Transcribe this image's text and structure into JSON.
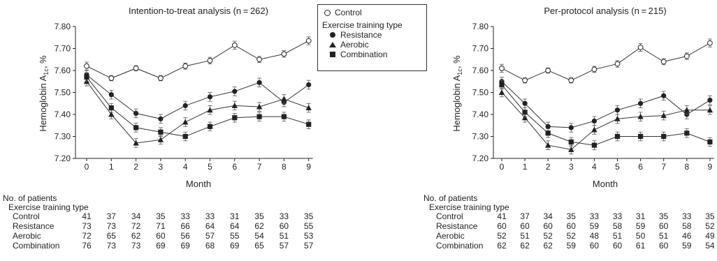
{
  "legend": {
    "items": [
      {
        "label": "Control",
        "marker": "open-circle"
      },
      {
        "label": "Resistance",
        "marker": "filled-circle"
      },
      {
        "label": "Aerobic",
        "marker": "filled-triangle"
      },
      {
        "label": "Combination",
        "marker": "filled-square"
      }
    ],
    "group_title": "Exercise training type"
  },
  "chart_data": [
    {
      "type": "line",
      "title": "Intention-to-treat analysis (n = 262)",
      "xlabel": "Month",
      "ylabel": "Hemoglobin A1c, %",
      "x": [
        0,
        1,
        2,
        3,
        4,
        5,
        6,
        7,
        8,
        9
      ],
      "ylim": [
        7.2,
        7.8
      ],
      "yticks": [
        "7.20",
        "7.30",
        "7.40",
        "7.50",
        "7.60",
        "7.70",
        "7.80"
      ],
      "series": [
        {
          "name": "Control",
          "marker": "open-circle",
          "values": [
            7.62,
            7.565,
            7.61,
            7.565,
            7.62,
            7.645,
            7.715,
            7.65,
            7.675,
            7.735
          ],
          "err": [
            0.018,
            0.012,
            0.012,
            0.012,
            0.014,
            0.015,
            0.018,
            0.014,
            0.015,
            0.018
          ]
        },
        {
          "name": "Resistance",
          "marker": "filled-circle",
          "values": [
            7.58,
            7.49,
            7.405,
            7.38,
            7.44,
            7.48,
            7.505,
            7.545,
            7.455,
            7.535
          ],
          "err": [
            0.02,
            0.02,
            0.02,
            0.02,
            0.02,
            0.02,
            0.02,
            0.02,
            0.02,
            0.02
          ]
        },
        {
          "name": "Aerobic",
          "marker": "filled-triangle",
          "values": [
            7.55,
            7.4,
            7.27,
            7.285,
            7.365,
            7.42,
            7.44,
            7.435,
            7.47,
            7.43
          ],
          "err": [
            0.02,
            0.02,
            0.02,
            0.02,
            0.02,
            0.02,
            0.02,
            0.02,
            0.02,
            0.02
          ]
        },
        {
          "name": "Combination",
          "marker": "filled-square",
          "values": [
            7.57,
            7.43,
            7.34,
            7.32,
            7.3,
            7.345,
            7.385,
            7.39,
            7.39,
            7.355
          ],
          "err": [
            0.02,
            0.02,
            0.02,
            0.02,
            0.02,
            0.02,
            0.02,
            0.02,
            0.02,
            0.02
          ]
        }
      ]
    },
    {
      "type": "line",
      "title": "Per-protocol analysis (n = 215)",
      "xlabel": "Month",
      "ylabel": "Hemoglobin A1c, %",
      "x": [
        0,
        1,
        2,
        3,
        4,
        5,
        6,
        7,
        8,
        9
      ],
      "ylim": [
        7.2,
        7.8
      ],
      "yticks": [
        "7.20",
        "7.30",
        "7.40",
        "7.50",
        "7.60",
        "7.70",
        "7.80"
      ],
      "series": [
        {
          "name": "Control",
          "marker": "open-circle",
          "values": [
            7.61,
            7.555,
            7.6,
            7.555,
            7.605,
            7.63,
            7.705,
            7.64,
            7.665,
            7.725
          ],
          "err": [
            0.018,
            0.012,
            0.012,
            0.012,
            0.014,
            0.015,
            0.018,
            0.014,
            0.015,
            0.018
          ]
        },
        {
          "name": "Resistance",
          "marker": "filled-circle",
          "values": [
            7.55,
            7.45,
            7.345,
            7.34,
            7.37,
            7.42,
            7.45,
            7.485,
            7.4,
            7.465
          ],
          "err": [
            0.02,
            0.02,
            0.02,
            0.02,
            0.02,
            0.02,
            0.02,
            0.02,
            0.02,
            0.02
          ]
        },
        {
          "name": "Aerobic",
          "marker": "filled-triangle",
          "values": [
            7.5,
            7.385,
            7.26,
            7.24,
            7.33,
            7.38,
            7.39,
            7.395,
            7.42,
            7.42
          ],
          "err": [
            0.02,
            0.02,
            0.02,
            0.02,
            0.02,
            0.02,
            0.02,
            0.02,
            0.02,
            0.02
          ]
        },
        {
          "name": "Combination",
          "marker": "filled-square",
          "values": [
            7.535,
            7.41,
            7.315,
            7.275,
            7.26,
            7.3,
            7.3,
            7.3,
            7.315,
            7.275
          ],
          "err": [
            0.02,
            0.02,
            0.02,
            0.02,
            0.02,
            0.02,
            0.02,
            0.02,
            0.02,
            0.02
          ]
        }
      ]
    }
  ],
  "patients_tables": [
    {
      "heading": "No. of patients",
      "subheading": "Exercise training type",
      "rows": [
        {
          "label": "Control",
          "values": [
            "41",
            "37",
            "34",
            "35",
            "33",
            "33",
            "31",
            "35",
            "33",
            "35"
          ]
        },
        {
          "label": "Resistance",
          "values": [
            "73",
            "73",
            "72",
            "71",
            "66",
            "64",
            "64",
            "62",
            "60",
            "55"
          ]
        },
        {
          "label": "Aerobic",
          "values": [
            "72",
            "65",
            "62",
            "60",
            "56",
            "57",
            "55",
            "54",
            "51",
            "53"
          ]
        },
        {
          "label": "Combination",
          "values": [
            "76",
            "73",
            "73",
            "69",
            "69",
            "68",
            "69",
            "65",
            "57",
            "57"
          ]
        }
      ]
    },
    {
      "heading": "No. of patients",
      "subheading": "Exercise training type",
      "rows": [
        {
          "label": "Control",
          "values": [
            "41",
            "37",
            "34",
            "35",
            "33",
            "33",
            "31",
            "35",
            "33",
            "35"
          ]
        },
        {
          "label": "Resistance",
          "values": [
            "60",
            "60",
            "60",
            "60",
            "59",
            "58",
            "59",
            "60",
            "58",
            "52"
          ]
        },
        {
          "label": "Aerobic",
          "values": [
            "52",
            "51",
            "52",
            "52",
            "48",
            "51",
            "50",
            "51",
            "46",
            "49"
          ]
        },
        {
          "label": "Combination",
          "values": [
            "62",
            "62",
            "62",
            "59",
            "60",
            "60",
            "61",
            "60",
            "59",
            "54"
          ]
        }
      ]
    }
  ]
}
